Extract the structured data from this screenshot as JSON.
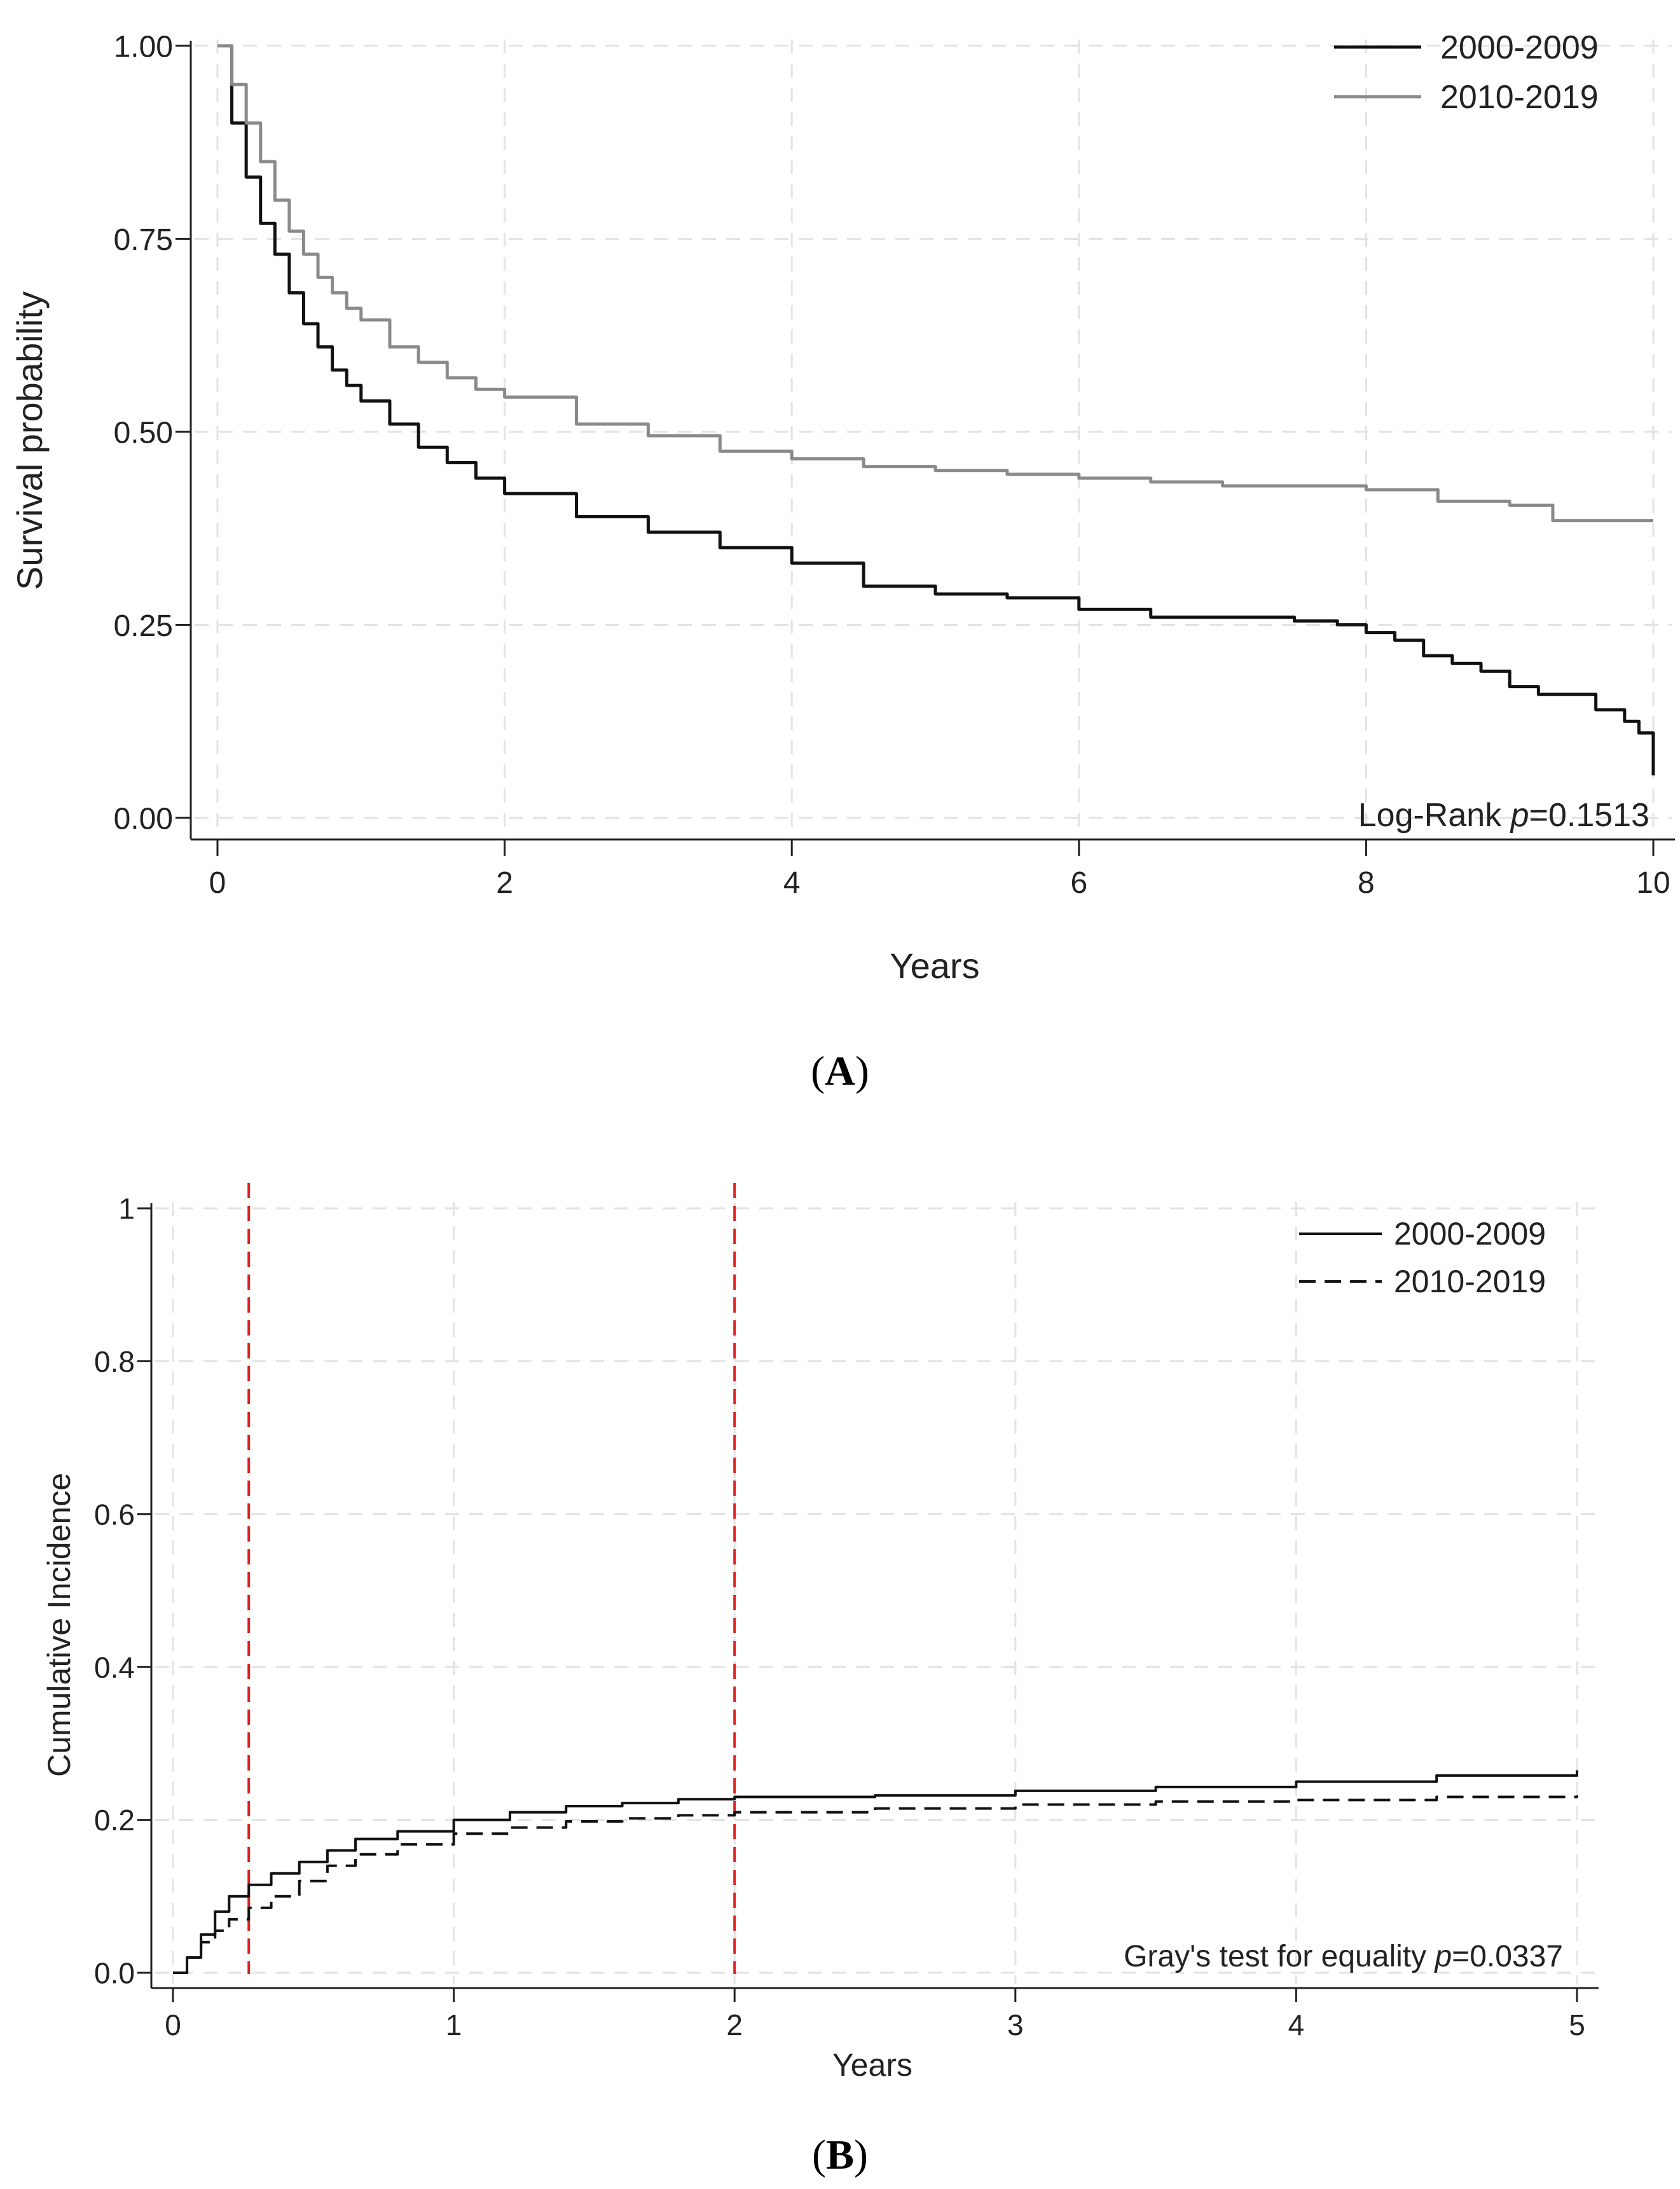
{
  "chart_data": [
    {
      "panel_label": "A",
      "type": "line",
      "xlabel": "Years",
      "ylabel": "Survival probability",
      "xlim": [
        0,
        10
      ],
      "ylim": [
        0,
        1
      ],
      "x_ticks": [
        "0",
        "2",
        "4",
        "6",
        "8",
        "10"
      ],
      "y_ticks": [
        "0.00",
        "0.25",
        "0.50",
        "0.75",
        "1.00"
      ],
      "grid": true,
      "legend_position": "top-right",
      "annotation": {
        "prefix": "Log-Rank ",
        "italic": "p",
        "suffix": "=0.1513"
      },
      "series": [
        {
          "name": "2000-2009",
          "color": "#111111",
          "dash": "solid",
          "x": [
            0,
            0.1,
            0.2,
            0.3,
            0.4,
            0.5,
            0.6,
            0.7,
            0.8,
            0.9,
            1.0,
            1.2,
            1.4,
            1.6,
            1.8,
            2.0,
            2.5,
            3.0,
            3.5,
            4.0,
            4.5,
            5.0,
            5.5,
            6.0,
            6.5,
            7.0,
            7.5,
            7.8,
            8.0,
            8.2,
            8.4,
            8.6,
            8.8,
            9.0,
            9.2,
            9.4,
            9.6,
            9.8,
            9.9,
            10.0
          ],
          "y": [
            1.0,
            0.9,
            0.83,
            0.77,
            0.73,
            0.68,
            0.64,
            0.61,
            0.58,
            0.56,
            0.54,
            0.51,
            0.48,
            0.46,
            0.44,
            0.42,
            0.39,
            0.37,
            0.35,
            0.33,
            0.3,
            0.29,
            0.285,
            0.27,
            0.26,
            0.26,
            0.255,
            0.25,
            0.24,
            0.23,
            0.21,
            0.2,
            0.19,
            0.17,
            0.16,
            0.16,
            0.14,
            0.125,
            0.11,
            0.055
          ]
        },
        {
          "name": "2010-2019",
          "color": "#8a8a8a",
          "dash": "solid",
          "x": [
            0,
            0.1,
            0.2,
            0.3,
            0.4,
            0.5,
            0.6,
            0.7,
            0.8,
            0.9,
            1.0,
            1.2,
            1.4,
            1.6,
            1.8,
            2.0,
            2.5,
            3.0,
            3.5,
            4.0,
            4.5,
            5.0,
            5.5,
            6.0,
            6.5,
            7.0,
            7.5,
            8.0,
            8.5,
            9.0,
            9.3,
            9.5,
            10.0
          ],
          "y": [
            1.0,
            0.95,
            0.9,
            0.85,
            0.8,
            0.76,
            0.73,
            0.7,
            0.68,
            0.66,
            0.645,
            0.61,
            0.59,
            0.57,
            0.555,
            0.545,
            0.51,
            0.495,
            0.475,
            0.465,
            0.455,
            0.45,
            0.445,
            0.44,
            0.435,
            0.43,
            0.43,
            0.425,
            0.41,
            0.405,
            0.385,
            0.385,
            0.385
          ]
        }
      ]
    },
    {
      "panel_label": "B",
      "type": "line",
      "xlabel": "Years",
      "ylabel": "Cumulative Incidence",
      "xlim": [
        0,
        5
      ],
      "ylim": [
        0,
        1
      ],
      "x_ticks": [
        "0",
        "1",
        "2",
        "3",
        "4",
        "5"
      ],
      "y_ticks": [
        "0.0",
        "0.2",
        "0.4",
        "0.6",
        "0.8",
        "1"
      ],
      "grid": true,
      "legend_position": "top-right",
      "annotation": {
        "prefix": "Gray's test for equality ",
        "italic": "p",
        "suffix": "=0.0337"
      },
      "reference_lines": [
        {
          "x": 0.27,
          "color": "#e02020",
          "dash": "dashed"
        },
        {
          "x": 2.0,
          "color": "#e02020",
          "dash": "dashed"
        }
      ],
      "series": [
        {
          "name": "2000-2009",
          "color": "#111111",
          "dash": "solid",
          "x": [
            0,
            0.05,
            0.1,
            0.15,
            0.2,
            0.27,
            0.35,
            0.45,
            0.55,
            0.65,
            0.8,
            1.0,
            1.2,
            1.4,
            1.6,
            1.8,
            2.0,
            2.5,
            3.0,
            3.5,
            4.0,
            4.5,
            5.0
          ],
          "y": [
            0,
            0.02,
            0.05,
            0.08,
            0.1,
            0.115,
            0.13,
            0.145,
            0.16,
            0.175,
            0.185,
            0.2,
            0.21,
            0.218,
            0.222,
            0.227,
            0.23,
            0.232,
            0.238,
            0.243,
            0.25,
            0.258,
            0.265
          ]
        },
        {
          "name": "2010-2019",
          "color": "#111111",
          "dash": "dashed",
          "x": [
            0,
            0.05,
            0.1,
            0.15,
            0.2,
            0.27,
            0.35,
            0.45,
            0.55,
            0.65,
            0.8,
            1.0,
            1.2,
            1.4,
            1.6,
            1.8,
            2.0,
            2.5,
            3.0,
            3.5,
            4.0,
            4.5,
            5.0
          ],
          "y": [
            0,
            0.02,
            0.04,
            0.055,
            0.07,
            0.085,
            0.1,
            0.12,
            0.14,
            0.155,
            0.168,
            0.182,
            0.19,
            0.198,
            0.202,
            0.206,
            0.21,
            0.215,
            0.22,
            0.224,
            0.226,
            0.23,
            0.232
          ]
        }
      ]
    }
  ]
}
